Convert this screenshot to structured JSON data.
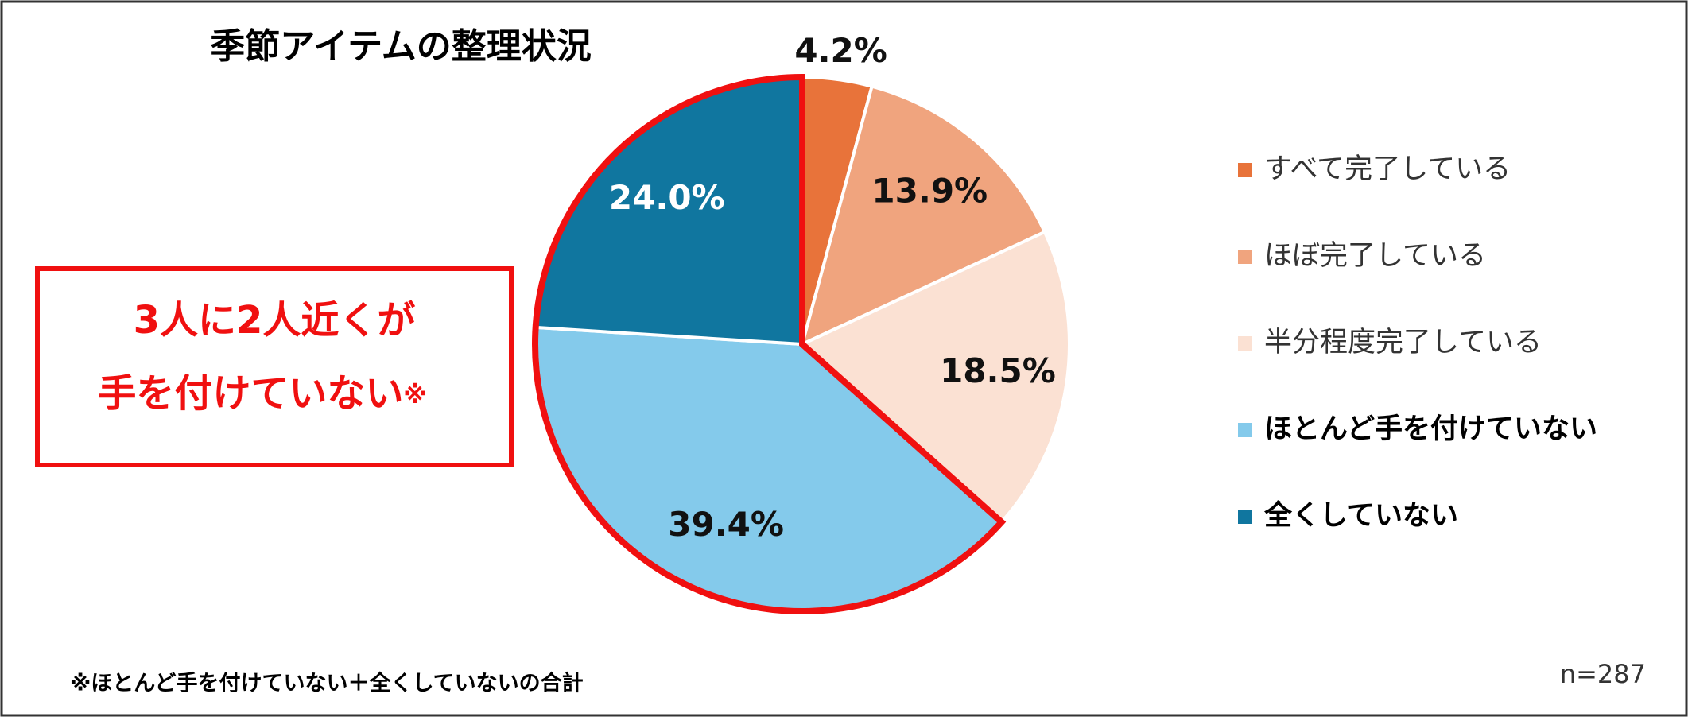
{
  "chart_data": {
    "type": "pie",
    "title": "季節アイテムの整理状況",
    "categories": [
      "すべて完了している",
      "ほぼ完了している",
      "半分程度完了している",
      "ほとんど手を付けていない",
      "全くしていない"
    ],
    "values": [
      4.2,
      13.9,
      18.5,
      39.4,
      24.0
    ],
    "value_labels": [
      "4.2%",
      "13.9%",
      "18.5%",
      "39.4%",
      "24.0%"
    ],
    "colors": [
      "#E8733A",
      "#F0A47E",
      "#FBE1D3",
      "#84CAEB",
      "#10769F"
    ],
    "legend": "right",
    "annotation": {
      "lines": [
        "3人に2人近くが",
        "手を付けていない"
      ],
      "mark": "※"
    },
    "footnote": "※ほとんど手を付けていない＋全くしていないの合計",
    "sample_size": "n=287"
  }
}
